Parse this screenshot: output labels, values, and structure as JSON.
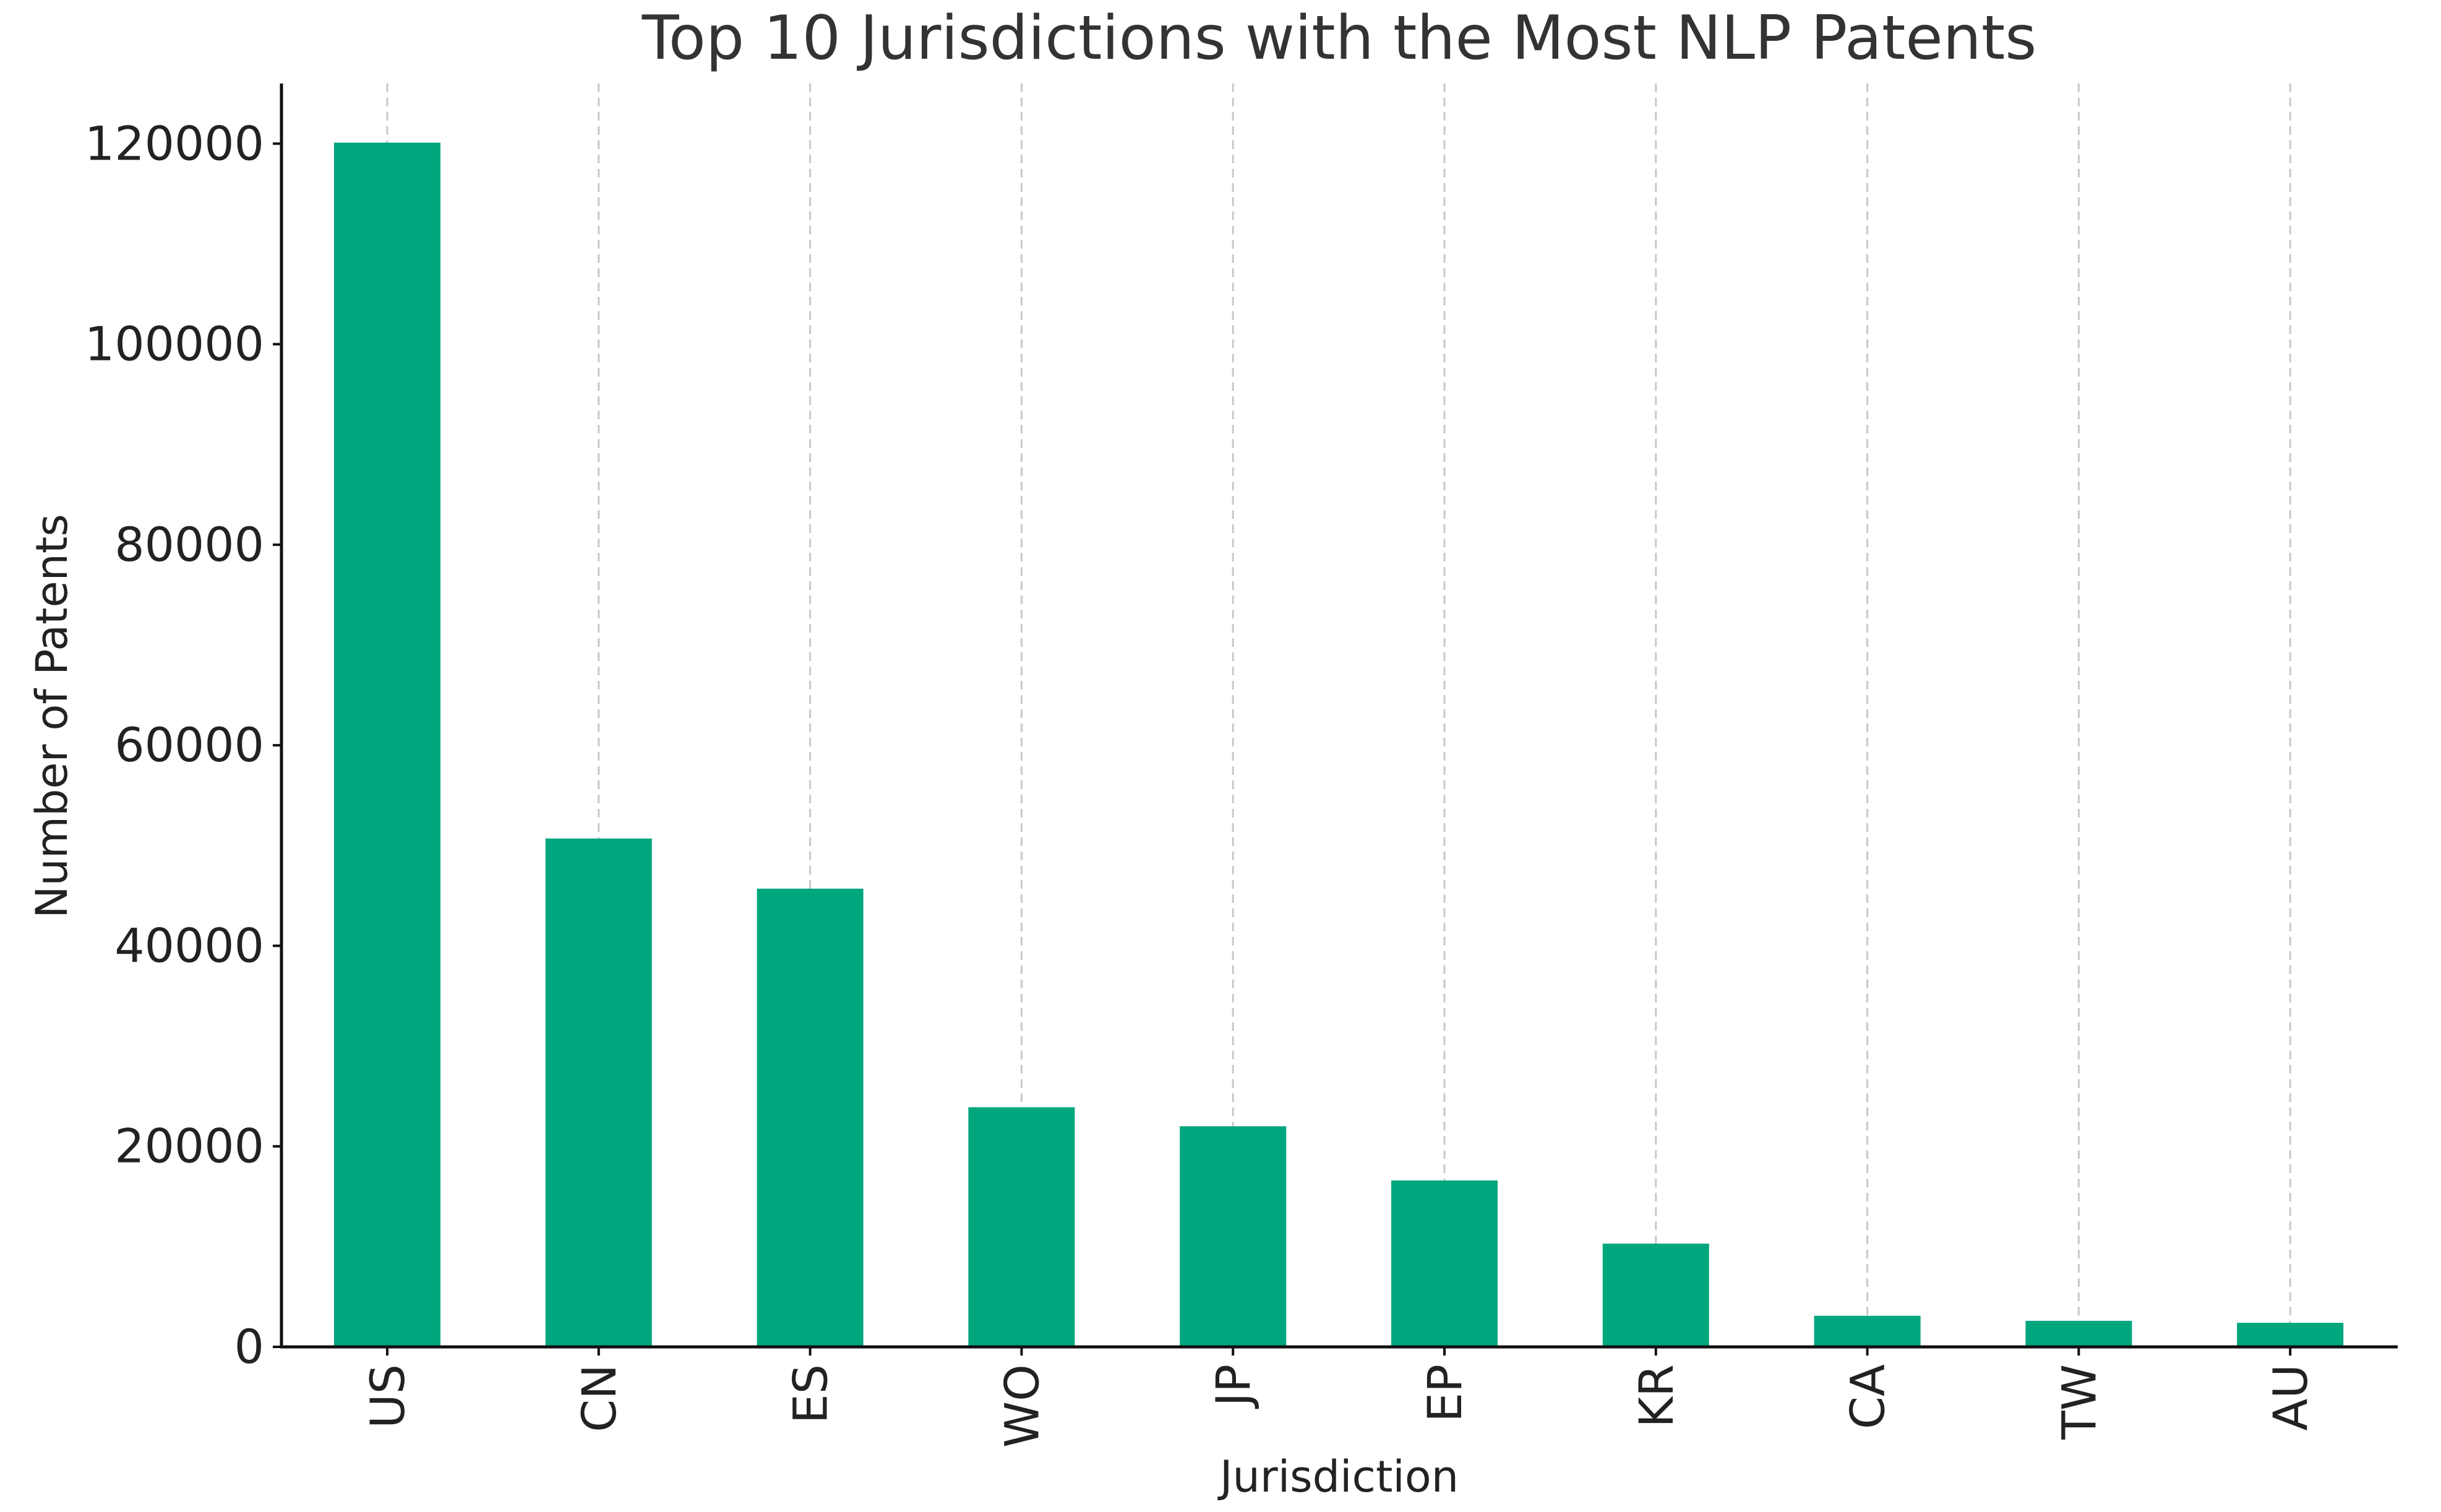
{
  "chart_data": {
    "type": "bar",
    "title": "Top 10 Jurisdictions with the Most NLP Patents",
    "xlabel": "Jurisdiction",
    "ylabel": "Number of Patents",
    "categories": [
      "US",
      "CN",
      "ES",
      "WO",
      "JP",
      "EP",
      "KR",
      "CA",
      "TW",
      "AU"
    ],
    "values": [
      120100,
      50700,
      45700,
      23900,
      22000,
      16600,
      10300,
      3100,
      2600,
      2400
    ],
    "ylim": [
      0,
      126000
    ],
    "yticks": [
      0,
      20000,
      40000,
      60000,
      80000,
      100000,
      120000
    ],
    "grid": "vertical dashed",
    "bar_color": "#00a67e"
  }
}
